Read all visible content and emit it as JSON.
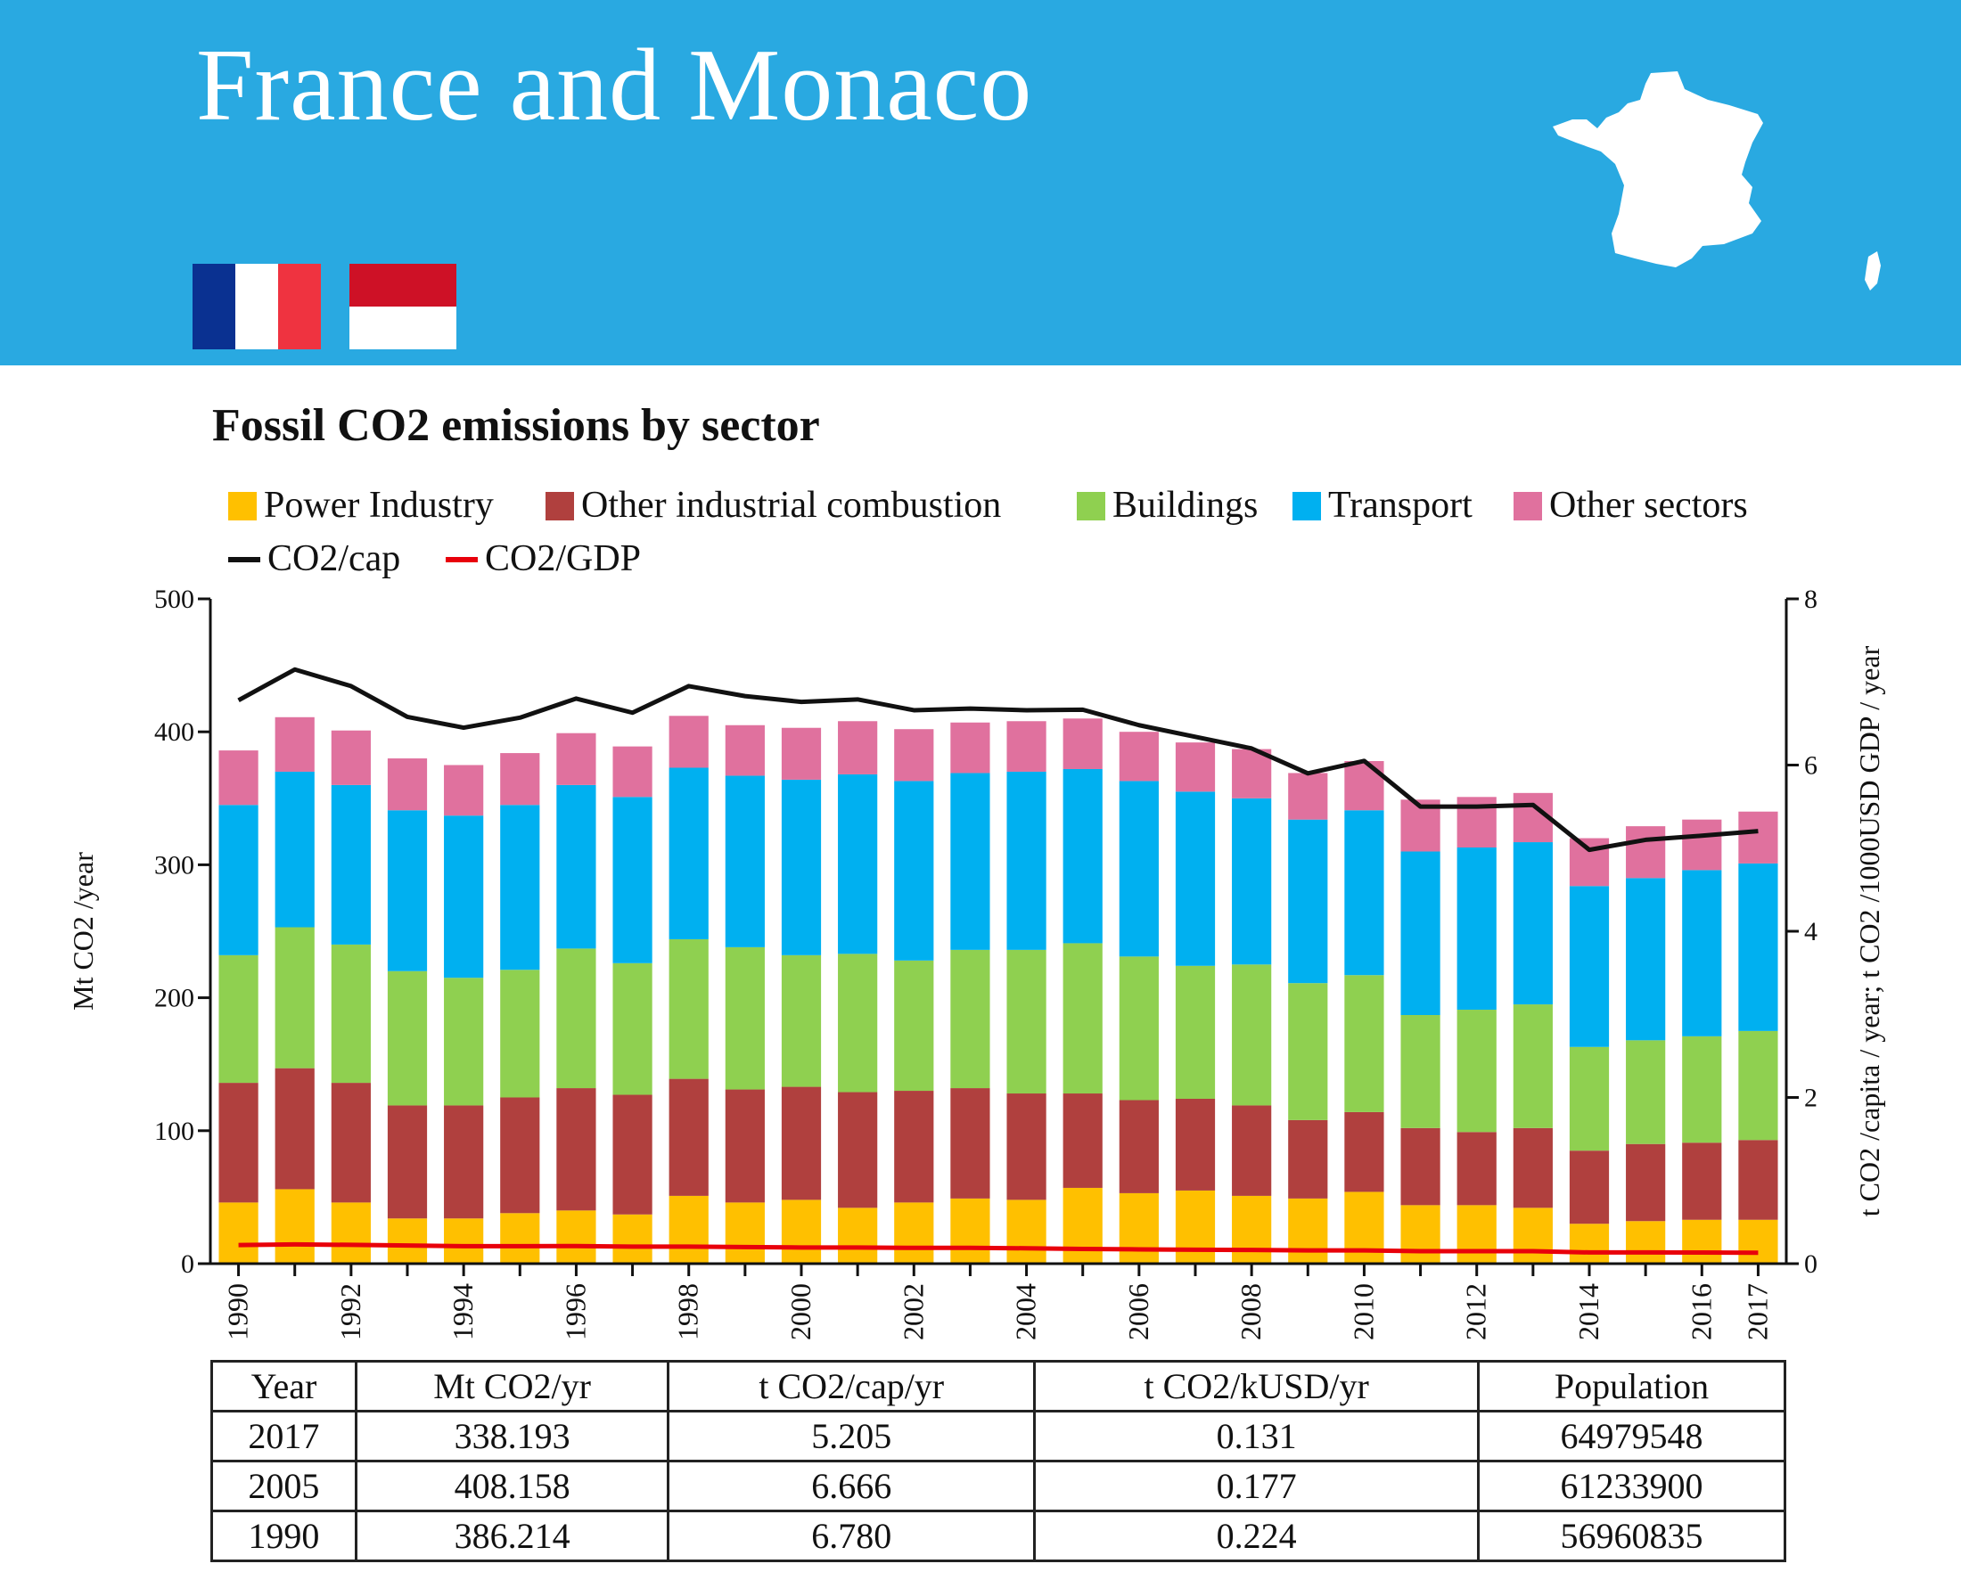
{
  "header": {
    "title": "France and Monaco",
    "bg_color": "#29a9e1",
    "flags": [
      {
        "name": "france-flag",
        "colors": [
          "#0a3191",
          "#ffffff",
          "#ef3340"
        ]
      },
      {
        "name": "monaco-flag",
        "colors": [
          "#ce1126",
          "#ffffff"
        ]
      }
    ]
  },
  "chart_data": {
    "type": "bar",
    "stacked": true,
    "title": "Fossil CO2 emissions by sector",
    "ylabel": "Mt CO2 /year",
    "y2label": "t CO2 /capita / year; t CO2 /1000USD GDP / year",
    "ylim": [
      0,
      500
    ],
    "y2lim": [
      0,
      8
    ],
    "yticks": [
      "0",
      "100",
      "200",
      "300",
      "400",
      "500"
    ],
    "y2ticks": [
      "0",
      "2",
      "4",
      "6",
      "8"
    ],
    "xticklabels": [
      "1990",
      "1992",
      "1994",
      "1996",
      "1998",
      "2000",
      "2002",
      "2004",
      "2006",
      "2008",
      "2010",
      "2012",
      "2014",
      "2016",
      "2017"
    ],
    "categories": [
      "1990",
      "1991",
      "1992",
      "1993",
      "1994",
      "1995",
      "1996",
      "1997",
      "1998",
      "1999",
      "2000",
      "2001",
      "2002",
      "2003",
      "2004",
      "2005",
      "2006",
      "2007",
      "2008",
      "2009",
      "2010",
      "2011",
      "2012",
      "2013",
      "2014",
      "2015",
      "2016",
      "2017"
    ],
    "series": [
      {
        "name": "Power Industry",
        "color": "#ffc000",
        "values": [
          46,
          56,
          46,
          34,
          34,
          38,
          40,
          37,
          51,
          46,
          48,
          42,
          46,
          49,
          48,
          57,
          53,
          55,
          51,
          49,
          54,
          44,
          44,
          42,
          30,
          32,
          33,
          33
        ]
      },
      {
        "name": "Other industrial combustion",
        "color": "#b0403e",
        "values": [
          90,
          91,
          90,
          85,
          85,
          87,
          92,
          90,
          88,
          85,
          85,
          87,
          84,
          83,
          80,
          71,
          70,
          69,
          68,
          59,
          60,
          58,
          55,
          60,
          55,
          58,
          58,
          60
        ]
      },
      {
        "name": "Buildings",
        "color": "#8fd050",
        "values": [
          96,
          106,
          104,
          101,
          96,
          96,
          105,
          99,
          105,
          107,
          99,
          104,
          98,
          104,
          108,
          113,
          108,
          100,
          106,
          103,
          103,
          85,
          92,
          93,
          78,
          78,
          80,
          82
        ]
      },
      {
        "name": "Transport",
        "color": "#00b0f0",
        "values": [
          113,
          117,
          120,
          121,
          122,
          124,
          123,
          125,
          129,
          129,
          132,
          135,
          135,
          133,
          134,
          131,
          132,
          131,
          125,
          123,
          124,
          123,
          122,
          122,
          121,
          122,
          125,
          126
        ]
      },
      {
        "name": "Other sectors",
        "color": "#e0719e",
        "values": [
          41,
          41,
          41,
          39,
          38,
          39,
          39,
          38,
          39,
          38,
          39,
          40,
          39,
          38,
          38,
          38,
          37,
          37,
          37,
          35,
          37,
          39,
          38,
          37,
          36,
          39,
          38,
          39
        ]
      }
    ],
    "lines": [
      {
        "name": "CO2/cap",
        "color": "#111111",
        "axis": "right",
        "values": [
          6.78,
          7.15,
          6.95,
          6.58,
          6.45,
          6.57,
          6.8,
          6.63,
          6.95,
          6.83,
          6.76,
          6.79,
          6.66,
          6.68,
          6.66,
          6.666,
          6.48,
          6.34,
          6.2,
          5.9,
          6.05,
          5.5,
          5.5,
          5.52,
          4.98,
          5.1,
          5.15,
          5.205
        ]
      },
      {
        "name": "CO2/GDP",
        "color": "#e8000b",
        "axis": "right",
        "values": [
          0.224,
          0.232,
          0.226,
          0.218,
          0.21,
          0.21,
          0.212,
          0.205,
          0.205,
          0.2,
          0.195,
          0.195,
          0.19,
          0.19,
          0.185,
          0.177,
          0.172,
          0.167,
          0.165,
          0.16,
          0.16,
          0.15,
          0.15,
          0.15,
          0.135,
          0.135,
          0.134,
          0.131
        ]
      }
    ]
  },
  "table": {
    "headers": [
      "Year",
      "Mt CO2/yr",
      "t CO2/cap/yr",
      "t CO2/kUSD/yr",
      "Population"
    ],
    "rows": [
      [
        "2017",
        "338.193",
        "5.205",
        "0.131",
        "64979548"
      ],
      [
        "2005",
        "408.158",
        "6.666",
        "0.177",
        "61233900"
      ],
      [
        "1990",
        "386.214",
        "6.780",
        "0.224",
        "56960835"
      ]
    ]
  }
}
